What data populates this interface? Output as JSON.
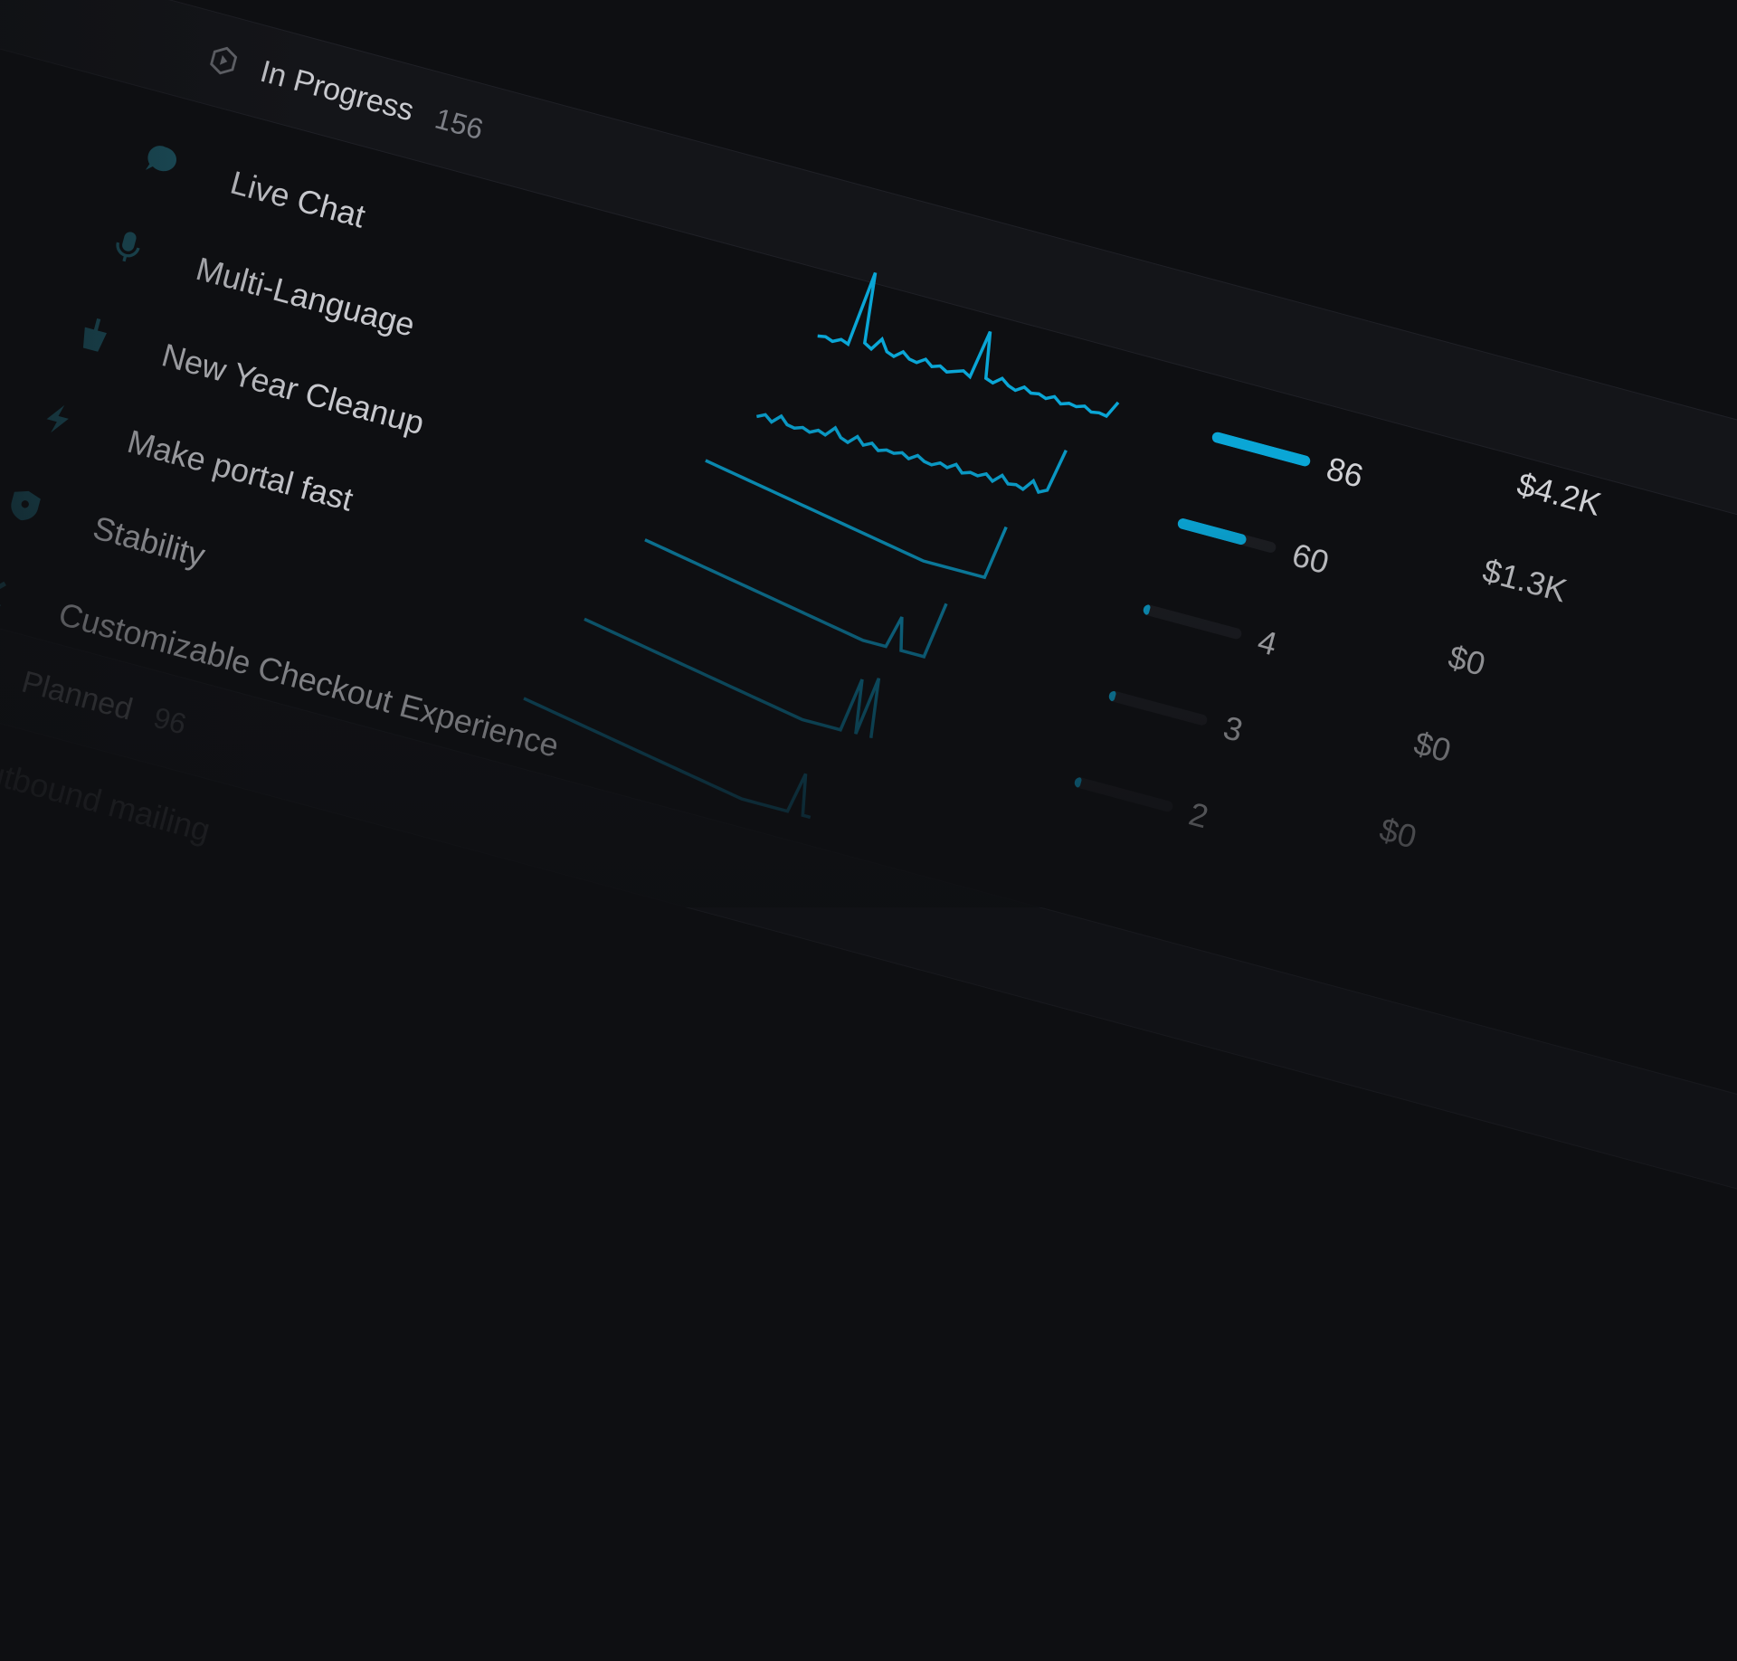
{
  "accent": "#0aa6d6",
  "groups": [
    {
      "label": "In Progress",
      "count": "156",
      "icon": "in-progress-hexagon-icon"
    },
    {
      "label": "Planned",
      "count": "96",
      "icon": "planned-hexagon-icon"
    }
  ],
  "rows": [
    {
      "label": "Live Chat",
      "icon": "chat-bubble-icon",
      "count": "86",
      "progress": 1.0,
      "revenue": "$4.2K",
      "spark": [
        4,
        5,
        3,
        6,
        4,
        60,
        8,
        5,
        14,
        6,
        4,
        9,
        5,
        4,
        8,
        4,
        6,
        3,
        5,
        7,
        4,
        40,
        6,
        4,
        9,
        5,
        3,
        7,
        4,
        5,
        3,
        6,
        2,
        4,
        3,
        5,
        2,
        3,
        2,
        14
      ]
    },
    {
      "label": "Multi-Language",
      "icon": "microphone-icon",
      "count": "60",
      "progress": 0.7,
      "revenue": "$1.3K",
      "spark": [
        3,
        6,
        2,
        8,
        3,
        2,
        4,
        2,
        5,
        3,
        10,
        4,
        2,
        8,
        3,
        6,
        2,
        4,
        3,
        5,
        2,
        6,
        3,
        2,
        5,
        3,
        7,
        2,
        4,
        3,
        6,
        2,
        8,
        3,
        4,
        2,
        10,
        3,
        6,
        38
      ]
    },
    {
      "label": "New Year Cleanup",
      "icon": "broom-icon",
      "count": "4",
      "progress": 0.05,
      "revenue": "$0",
      "spark": [
        30,
        29,
        28,
        27,
        26,
        25,
        24,
        23,
        22,
        21,
        20,
        19,
        18,
        17,
        16,
        15,
        14,
        13,
        12,
        11,
        10,
        9,
        8,
        7,
        6,
        5,
        4,
        3,
        2,
        1,
        0,
        0,
        0,
        0,
        0,
        0,
        0,
        0,
        0,
        40
      ]
    },
    {
      "label": "Make portal fast",
      "icon": "lightning-icon",
      "count": "3",
      "progress": 0.035,
      "revenue": "$0",
      "spark": [
        30,
        29,
        28,
        27,
        26,
        25,
        24,
        23,
        22,
        21,
        20,
        19,
        18,
        17,
        16,
        15,
        14,
        13,
        12,
        11,
        10,
        9,
        8,
        7,
        6,
        5,
        4,
        3,
        2,
        1,
        0,
        0,
        0,
        0,
        24,
        0,
        0,
        0,
        0,
        42
      ]
    },
    {
      "label": "Stability",
      "icon": "shield-icon",
      "count": "2",
      "progress": 0.023,
      "revenue": "$0",
      "spark": [
        30,
        29,
        28,
        27,
        26,
        25,
        24,
        23,
        22,
        21,
        20,
        19,
        18,
        17,
        16,
        15,
        14,
        13,
        12,
        11,
        10,
        9,
        8,
        7,
        6,
        5,
        4,
        3,
        2,
        1,
        0,
        0,
        0,
        0,
        0,
        0,
        40,
        0,
        44,
        0
      ]
    },
    {
      "label": "Customizable Checkout Experience",
      "icon": "tools-icon",
      "count": "",
      "progress": 0,
      "revenue": "",
      "spark": [
        30,
        29,
        28,
        27,
        26,
        25,
        24,
        23,
        22,
        21,
        20,
        19,
        18,
        17,
        16,
        15,
        14,
        13,
        12,
        11,
        10,
        9,
        8,
        7,
        6,
        5,
        4,
        3,
        2,
        1,
        0,
        0,
        0,
        0,
        0,
        0,
        0,
        30,
        0,
        0
      ]
    }
  ],
  "planned_rows": [
    {
      "label": "Outbound mailing"
    }
  ]
}
